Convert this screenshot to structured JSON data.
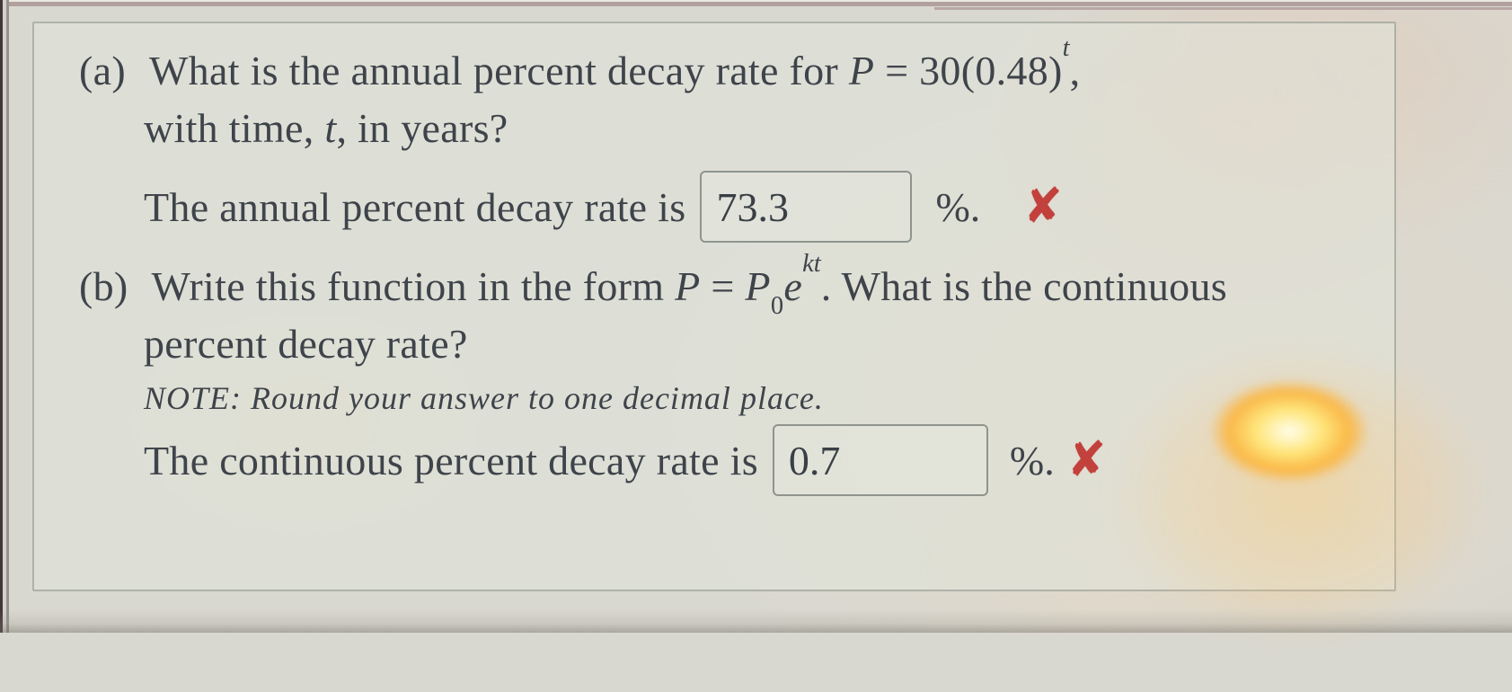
{
  "problem": {
    "part_a": {
      "label": "(a)",
      "q_seg1": "What is the annual percent decay rate for ",
      "q_var1": "P",
      "q_seg2": " = 30(0.48)",
      "q_sup1": "t",
      "q_seg3": ",",
      "q_line2_seg1": "with time, ",
      "q_line2_var": "t",
      "q_line2_seg2": ", in years?",
      "answer_prompt": "The annual percent decay rate is",
      "answer_value": "73.3",
      "unit": "%.",
      "status": "incorrect",
      "status_icon": "✘"
    },
    "part_b": {
      "label": "(b)",
      "q_seg1": "Write this function in the form ",
      "q_var1": "P",
      "q_seg2": " = ",
      "q_var2": "P",
      "q_sub1": "0",
      "q_var3": "e",
      "q_sup1": "kt",
      "q_seg3": ". What is the continuous",
      "q_line2": "percent decay rate?",
      "note": "NOTE: Round your answer to one decimal place.",
      "answer_prompt": "The continuous percent decay rate is",
      "answer_value": "0.7",
      "unit": "%.",
      "status": "incorrect",
      "status_icon": "✘"
    },
    "colors": {
      "text": "#3f444b",
      "incorrect_red": "#c2413c",
      "panel_border": "#82857b",
      "input_border": "#8f958d",
      "glare_orange": "#ffb02c"
    }
  }
}
